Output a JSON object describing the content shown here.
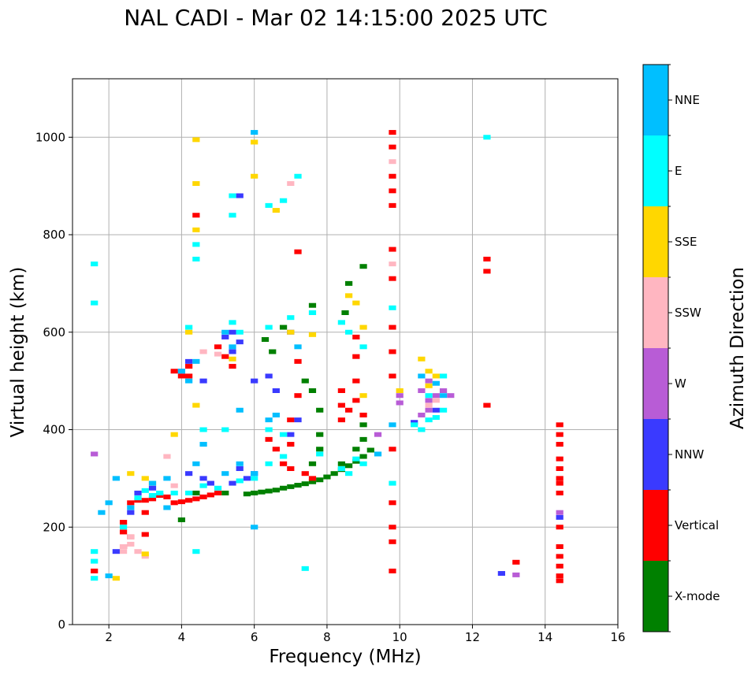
{
  "chart_data": {
    "type": "scatter",
    "title": "NAL CADI - Mar 02 14:15:00 2025 UTC",
    "xlabel": "Frequency (MHz)",
    "ylabel": "Virtual height (km)",
    "xlim": [
      1,
      16
    ],
    "ylim": [
      0,
      1120
    ],
    "x_ticks": [
      2,
      4,
      6,
      8,
      10,
      12,
      14,
      16
    ],
    "y_ticks": [
      0,
      200,
      400,
      600,
      800,
      1000
    ],
    "grid": true,
    "colorbar": {
      "label": "Azimuth Direction",
      "categories": [
        "X-mode",
        "Vertical",
        "NNW",
        "W",
        "SSW",
        "SSE",
        "E",
        "NNE"
      ],
      "colors": [
        "#008000",
        "#ff0000",
        "#3a3aff",
        "#b85cd6",
        "#ffb6c1",
        "#ffd700",
        "#00ffff",
        "#00bfff"
      ]
    },
    "series": [
      {
        "name": "X-mode",
        "points": [
          [
            5.8,
            268
          ],
          [
            6.0,
            270
          ],
          [
            6.2,
            272
          ],
          [
            6.4,
            274
          ],
          [
            6.6,
            276
          ],
          [
            6.8,
            280
          ],
          [
            7.0,
            283
          ],
          [
            7.2,
            286
          ],
          [
            7.4,
            289
          ],
          [
            7.6,
            293
          ],
          [
            7.8,
            297
          ],
          [
            8.0,
            303
          ],
          [
            8.2,
            310
          ],
          [
            8.4,
            318
          ],
          [
            8.6,
            326
          ],
          [
            8.8,
            335
          ],
          [
            9.0,
            345
          ],
          [
            9.2,
            358
          ],
          [
            8.5,
            640
          ],
          [
            8.6,
            700
          ],
          [
            9.0,
            735
          ],
          [
            9.0,
            410
          ],
          [
            9.0,
            380
          ],
          [
            8.8,
            360
          ],
          [
            8.4,
            330
          ],
          [
            7.6,
            330
          ],
          [
            7.8,
            360
          ],
          [
            7.8,
            390
          ],
          [
            7.6,
            480
          ],
          [
            7.4,
            500
          ],
          [
            6.5,
            560
          ],
          [
            6.8,
            610
          ],
          [
            7.6,
            655
          ],
          [
            4.0,
            215
          ],
          [
            4.4,
            270
          ],
          [
            5.2,
            270
          ],
          [
            6.3,
            585
          ],
          [
            7.8,
            440
          ]
        ]
      },
      {
        "name": "Vertical",
        "points": [
          [
            3.8,
            250
          ],
          [
            4.0,
            252
          ],
          [
            4.2,
            255
          ],
          [
            4.4,
            258
          ],
          [
            4.6,
            262
          ],
          [
            4.8,
            266
          ],
          [
            5.0,
            270
          ],
          [
            3.6,
            262
          ],
          [
            3.4,
            265
          ],
          [
            3.2,
            258
          ],
          [
            3.0,
            255
          ],
          [
            2.8,
            255
          ],
          [
            2.6,
            250
          ],
          [
            2.4,
            210
          ],
          [
            2.4,
            190
          ],
          [
            2.6,
            180
          ],
          [
            3.0,
            185
          ],
          [
            3.0,
            230
          ],
          [
            3.8,
            520
          ],
          [
            4.0,
            510
          ],
          [
            4.2,
            530
          ],
          [
            4.2,
            510
          ],
          [
            6.4,
            380
          ],
          [
            6.6,
            360
          ],
          [
            7.0,
            370
          ],
          [
            7.0,
            420
          ],
          [
            7.2,
            470
          ],
          [
            7.2,
            540
          ],
          [
            7.2,
            765
          ],
          [
            7.6,
            300
          ],
          [
            7.4,
            310
          ],
          [
            7.0,
            320
          ],
          [
            6.8,
            330
          ],
          [
            8.4,
            480
          ],
          [
            8.4,
            450
          ],
          [
            8.4,
            420
          ],
          [
            8.6,
            440
          ],
          [
            8.8,
            460
          ],
          [
            8.8,
            500
          ],
          [
            8.8,
            550
          ],
          [
            8.8,
            590
          ],
          [
            9.0,
            430
          ],
          [
            9.8,
            1010
          ],
          [
            9.8,
            980
          ],
          [
            9.8,
            920
          ],
          [
            9.8,
            890
          ],
          [
            9.8,
            860
          ],
          [
            9.8,
            770
          ],
          [
            9.8,
            710
          ],
          [
            9.8,
            610
          ],
          [
            9.8,
            560
          ],
          [
            9.8,
            510
          ],
          [
            9.8,
            360
          ],
          [
            9.8,
            250
          ],
          [
            9.8,
            200
          ],
          [
            9.8,
            170
          ],
          [
            9.8,
            110
          ],
          [
            12.4,
            750
          ],
          [
            12.4,
            725
          ],
          [
            12.4,
            450
          ],
          [
            14.4,
            410
          ],
          [
            14.4,
            390
          ],
          [
            14.4,
            370
          ],
          [
            14.4,
            340
          ],
          [
            14.4,
            320
          ],
          [
            14.4,
            300
          ],
          [
            14.4,
            290
          ],
          [
            14.4,
            270
          ],
          [
            14.4,
            200
          ],
          [
            14.4,
            160
          ],
          [
            14.4,
            140
          ],
          [
            14.4,
            120
          ],
          [
            14.4,
            100
          ],
          [
            14.4,
            90
          ],
          [
            13.2,
            128
          ],
          [
            5.0,
            570
          ],
          [
            5.2,
            550
          ],
          [
            5.4,
            530
          ],
          [
            4.4,
            840
          ],
          [
            1.6,
            110
          ],
          [
            2.4,
            160
          ]
        ]
      },
      {
        "name": "NNW",
        "points": [
          [
            5.2,
            590
          ],
          [
            5.4,
            600
          ],
          [
            5.6,
            580
          ],
          [
            5.4,
            560
          ],
          [
            4.0,
            520
          ],
          [
            4.2,
            540
          ],
          [
            5.8,
            300
          ],
          [
            6.0,
            310
          ],
          [
            5.6,
            320
          ],
          [
            5.4,
            290
          ],
          [
            4.8,
            290
          ],
          [
            4.6,
            300
          ],
          [
            4.2,
            310
          ],
          [
            3.2,
            280
          ],
          [
            2.8,
            270
          ],
          [
            2.6,
            230
          ],
          [
            6.6,
            480
          ],
          [
            6.4,
            510
          ],
          [
            7.0,
            390
          ],
          [
            7.0,
            600
          ],
          [
            7.2,
            420
          ],
          [
            2.2,
            150
          ],
          [
            12.8,
            105
          ],
          [
            10.4,
            415
          ],
          [
            11.0,
            440
          ],
          [
            14.4,
            220
          ],
          [
            6.0,
            500
          ],
          [
            4.6,
            500
          ],
          [
            5.6,
            880
          ]
        ]
      },
      {
        "name": "W",
        "points": [
          [
            10.6,
            480
          ],
          [
            10.8,
            500
          ],
          [
            10.8,
            460
          ],
          [
            11.0,
            470
          ],
          [
            11.2,
            480
          ],
          [
            11.4,
            470
          ],
          [
            10.8,
            440
          ],
          [
            10.6,
            430
          ],
          [
            10.0,
            470
          ],
          [
            10.0,
            455
          ],
          [
            9.4,
            390
          ],
          [
            13.2,
            102
          ],
          [
            14.4,
            230
          ],
          [
            1.6,
            350
          ]
        ]
      },
      {
        "name": "SSW",
        "points": [
          [
            2.4,
            160
          ],
          [
            2.4,
            150
          ],
          [
            2.6,
            165
          ],
          [
            2.8,
            150
          ],
          [
            3.0,
            140
          ],
          [
            3.6,
            345
          ],
          [
            4.6,
            560
          ],
          [
            5.0,
            555
          ],
          [
            7.0,
            905
          ],
          [
            9.8,
            950
          ],
          [
            9.8,
            740
          ],
          [
            10.8,
            450
          ],
          [
            11.0,
            460
          ],
          [
            2.6,
            180
          ],
          [
            3.8,
            285
          ]
        ]
      },
      {
        "name": "SSE",
        "points": [
          [
            2.6,
            310
          ],
          [
            3.0,
            300
          ],
          [
            3.2,
            290
          ],
          [
            4.4,
            995
          ],
          [
            4.4,
            905
          ],
          [
            4.4,
            810
          ],
          [
            4.4,
            450
          ],
          [
            6.0,
            990
          ],
          [
            6.0,
            920
          ],
          [
            6.6,
            850
          ],
          [
            7.0,
            600
          ],
          [
            7.6,
            595
          ],
          [
            8.6,
            675
          ],
          [
            8.8,
            660
          ],
          [
            9.0,
            610
          ],
          [
            9.0,
            470
          ],
          [
            10.0,
            480
          ],
          [
            10.6,
            545
          ],
          [
            10.8,
            520
          ],
          [
            11.0,
            510
          ],
          [
            10.8,
            490
          ],
          [
            2.2,
            95
          ],
          [
            3.0,
            145
          ],
          [
            5.4,
            545
          ],
          [
            4.2,
            600
          ],
          [
            3.8,
            390
          ]
        ]
      },
      {
        "name": "E",
        "points": [
          [
            1.6,
            740
          ],
          [
            1.6,
            660
          ],
          [
            4.4,
            780
          ],
          [
            4.4,
            750
          ],
          [
            5.4,
            880
          ],
          [
            5.4,
            840
          ],
          [
            6.4,
            860
          ],
          [
            6.8,
            870
          ],
          [
            7.2,
            920
          ],
          [
            4.2,
            610
          ],
          [
            5.4,
            620
          ],
          [
            5.6,
            600
          ],
          [
            6.4,
            610
          ],
          [
            7.0,
            630
          ],
          [
            7.6,
            640
          ],
          [
            8.4,
            620
          ],
          [
            8.6,
            600
          ],
          [
            9.0,
            570
          ],
          [
            4.6,
            400
          ],
          [
            5.2,
            400
          ],
          [
            6.4,
            400
          ],
          [
            6.8,
            390
          ],
          [
            8.8,
            340
          ],
          [
            9.0,
            330
          ],
          [
            8.6,
            310
          ],
          [
            8.4,
            320
          ],
          [
            7.8,
            350
          ],
          [
            6.8,
            345
          ],
          [
            6.4,
            330
          ],
          [
            6.0,
            300
          ],
          [
            5.6,
            295
          ],
          [
            5.0,
            280
          ],
          [
            4.6,
            285
          ],
          [
            4.2,
            270
          ],
          [
            3.8,
            270
          ],
          [
            3.4,
            270
          ],
          [
            3.2,
            265
          ],
          [
            3.0,
            275
          ],
          [
            2.8,
            260
          ],
          [
            2.4,
            200
          ],
          [
            1.6,
            130
          ],
          [
            1.6,
            95
          ],
          [
            7.4,
            115
          ],
          [
            4.4,
            150
          ],
          [
            9.8,
            290
          ],
          [
            9.8,
            650
          ],
          [
            10.4,
            410
          ],
          [
            10.6,
            400
          ],
          [
            10.8,
            420
          ],
          [
            11.0,
            425
          ],
          [
            11.2,
            440
          ],
          [
            10.8,
            470
          ],
          [
            11.2,
            510
          ],
          [
            12.4,
            1000
          ],
          [
            1.6,
            150
          ]
        ]
      },
      {
        "name": "NNE",
        "points": [
          [
            2.2,
            300
          ],
          [
            2.0,
            250
          ],
          [
            1.8,
            230
          ],
          [
            2.6,
            240
          ],
          [
            3.2,
            290
          ],
          [
            3.6,
            300
          ],
          [
            4.4,
            330
          ],
          [
            5.2,
            310
          ],
          [
            5.6,
            330
          ],
          [
            6.0,
            310
          ],
          [
            6.0,
            200
          ],
          [
            5.6,
            440
          ],
          [
            5.4,
            570
          ],
          [
            5.2,
            600
          ],
          [
            6.4,
            420
          ],
          [
            6.6,
            430
          ],
          [
            4.0,
            520
          ],
          [
            4.4,
            540
          ],
          [
            4.2,
            500
          ],
          [
            6.0,
            1010
          ],
          [
            9.8,
            410
          ],
          [
            9.4,
            350
          ],
          [
            10.6,
            510
          ],
          [
            11.0,
            495
          ],
          [
            11.2,
            470
          ],
          [
            4.6,
            370
          ],
          [
            7.2,
            570
          ],
          [
            2.0,
            100
          ],
          [
            3.6,
            240
          ]
        ]
      }
    ]
  }
}
